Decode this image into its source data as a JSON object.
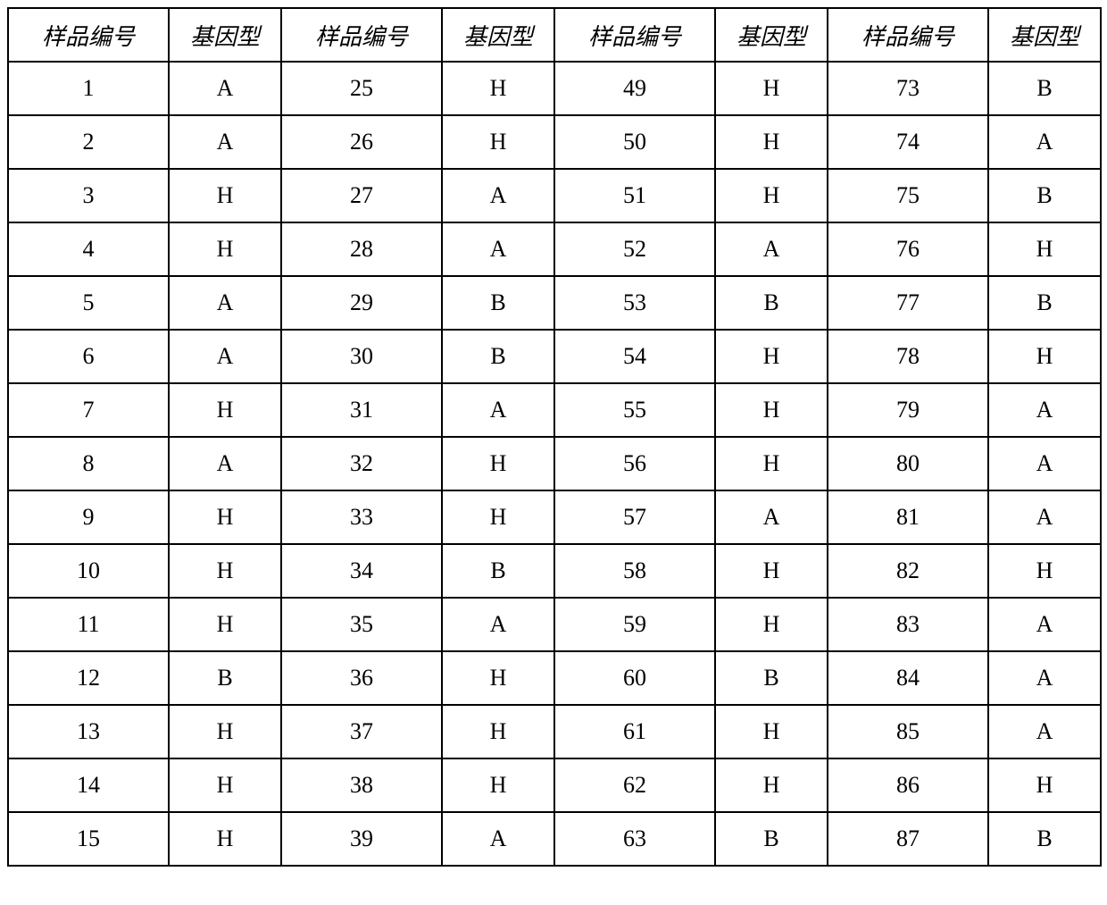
{
  "table": {
    "type": "table",
    "border_color": "#000000",
    "background_color": "#ffffff",
    "text_color": "#000000",
    "header_fontsize": 26,
    "cell_fontsize": 26,
    "header_font_style": "italic",
    "column_pairs": 4,
    "headers": {
      "sample_id": "样品编号",
      "genotype": "基因型"
    },
    "rows": [
      [
        {
          "id": "1",
          "g": "A"
        },
        {
          "id": "25",
          "g": "H"
        },
        {
          "id": "49",
          "g": "H"
        },
        {
          "id": "73",
          "g": "B"
        }
      ],
      [
        {
          "id": "2",
          "g": "A"
        },
        {
          "id": "26",
          "g": "H"
        },
        {
          "id": "50",
          "g": "H"
        },
        {
          "id": "74",
          "g": "A"
        }
      ],
      [
        {
          "id": "3",
          "g": "H"
        },
        {
          "id": "27",
          "g": "A"
        },
        {
          "id": "51",
          "g": "H"
        },
        {
          "id": "75",
          "g": "B"
        }
      ],
      [
        {
          "id": "4",
          "g": "H"
        },
        {
          "id": "28",
          "g": "A"
        },
        {
          "id": "52",
          "g": "A"
        },
        {
          "id": "76",
          "g": "H"
        }
      ],
      [
        {
          "id": "5",
          "g": "A"
        },
        {
          "id": "29",
          "g": "B"
        },
        {
          "id": "53",
          "g": "B"
        },
        {
          "id": "77",
          "g": "B"
        }
      ],
      [
        {
          "id": "6",
          "g": "A"
        },
        {
          "id": "30",
          "g": "B"
        },
        {
          "id": "54",
          "g": "H"
        },
        {
          "id": "78",
          "g": "H"
        }
      ],
      [
        {
          "id": "7",
          "g": "H"
        },
        {
          "id": "31",
          "g": "A"
        },
        {
          "id": "55",
          "g": "H"
        },
        {
          "id": "79",
          "g": "A"
        }
      ],
      [
        {
          "id": "8",
          "g": "A"
        },
        {
          "id": "32",
          "g": "H"
        },
        {
          "id": "56",
          "g": "H"
        },
        {
          "id": "80",
          "g": "A"
        }
      ],
      [
        {
          "id": "9",
          "g": "H"
        },
        {
          "id": "33",
          "g": "H"
        },
        {
          "id": "57",
          "g": "A"
        },
        {
          "id": "81",
          "g": "A"
        }
      ],
      [
        {
          "id": "10",
          "g": "H"
        },
        {
          "id": "34",
          "g": "B"
        },
        {
          "id": "58",
          "g": "H"
        },
        {
          "id": "82",
          "g": "H"
        }
      ],
      [
        {
          "id": "11",
          "g": "H"
        },
        {
          "id": "35",
          "g": "A"
        },
        {
          "id": "59",
          "g": "H"
        },
        {
          "id": "83",
          "g": "A"
        }
      ],
      [
        {
          "id": "12",
          "g": "B"
        },
        {
          "id": "36",
          "g": "H"
        },
        {
          "id": "60",
          "g": "B"
        },
        {
          "id": "84",
          "g": "A"
        }
      ],
      [
        {
          "id": "13",
          "g": "H"
        },
        {
          "id": "37",
          "g": "H"
        },
        {
          "id": "61",
          "g": "H"
        },
        {
          "id": "85",
          "g": "A"
        }
      ],
      [
        {
          "id": "14",
          "g": "H"
        },
        {
          "id": "38",
          "g": "H"
        },
        {
          "id": "62",
          "g": "H"
        },
        {
          "id": "86",
          "g": "H"
        }
      ],
      [
        {
          "id": "15",
          "g": "H"
        },
        {
          "id": "39",
          "g": "A"
        },
        {
          "id": "63",
          "g": "B"
        },
        {
          "id": "87",
          "g": "B"
        }
      ]
    ]
  }
}
